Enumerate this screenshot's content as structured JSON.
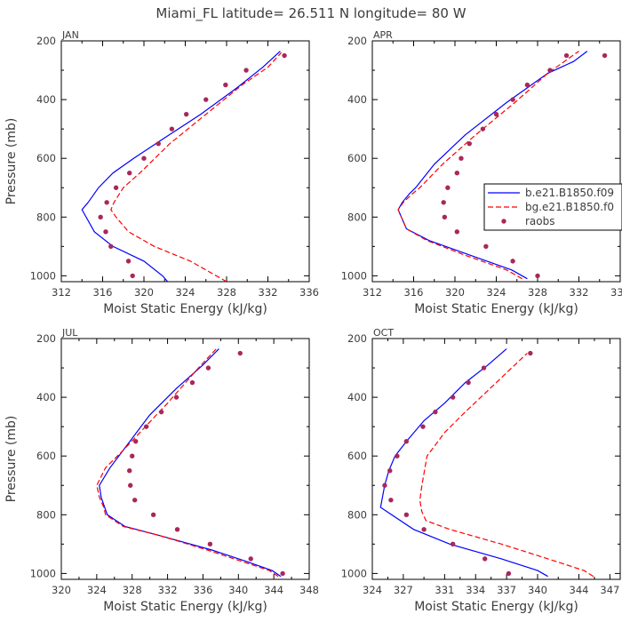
{
  "figure": {
    "title": "Miami_FL   latitude= 26.511 N longitude= 80 W"
  },
  "legend": {
    "entries": [
      {
        "label": "b.e21.B1850.f09",
        "color": "#0000ff",
        "style": "solid"
      },
      {
        "label": "bg.e21.B1850.f0",
        "color": "#ff0000",
        "style": "dashed"
      },
      {
        "label": "raobs",
        "color": "#a8285a",
        "style": "dot"
      }
    ]
  },
  "chart_data": [
    {
      "type": "line",
      "panel": "JAN",
      "title": "JAN",
      "xlabel": "Moist Static Energy (kJ/kg)",
      "ylabel": "Pressure (mb)",
      "xlim": [
        312,
        336
      ],
      "ylim": [
        1020,
        200
      ],
      "xticks": [
        312,
        316,
        320,
        324,
        328,
        332,
        336
      ],
      "yticks": [
        200,
        400,
        600,
        800,
        1000
      ],
      "series": [
        {
          "name": "b.e21.B1850.f09",
          "color": "#0000ff",
          "style": "solid",
          "x": [
            322.3,
            321.8,
            320.0,
            317.0,
            315.2,
            314.0,
            314.6,
            315.6,
            317.0,
            319.0,
            322.0,
            325.5,
            329.0,
            331.5,
            333.2
          ],
          "y": [
            1020,
            1000,
            950,
            900,
            850,
            775,
            750,
            700,
            650,
            600,
            530,
            450,
            360,
            290,
            235
          ]
        },
        {
          "name": "bg.e21.B1850.f0",
          "color": "#ff0000",
          "style": "dashed",
          "x": [
            328.0,
            327.0,
            324.5,
            321.0,
            318.5,
            317.3,
            316.8,
            317.1,
            318.0,
            319.6,
            322.5,
            326.0,
            329.5,
            332.0,
            333.3
          ],
          "y": [
            1020,
            1000,
            950,
            900,
            850,
            800,
            775,
            750,
            700,
            650,
            550,
            450,
            350,
            290,
            240
          ]
        },
        {
          "name": "raobs",
          "color": "#a8285a",
          "style": "dot",
          "x": [
            318.9,
            318.5,
            316.8,
            316.3,
            315.8,
            316.4,
            317.3,
            318.6,
            320.0,
            321.4,
            322.7,
            324.1,
            326.0,
            327.9,
            329.9,
            333.6
          ],
          "y": [
            1000,
            950,
            900,
            850,
            800,
            750,
            700,
            650,
            600,
            550,
            500,
            450,
            400,
            350,
            300,
            250
          ]
        }
      ]
    },
    {
      "type": "line",
      "panel": "APR",
      "title": "APR",
      "xlabel": "Moist Static Energy (kJ/kg)",
      "ylabel": "",
      "xlim": [
        312,
        336
      ],
      "ylim": [
        1020,
        200
      ],
      "xticks": [
        312,
        316,
        320,
        324,
        328,
        332,
        336
      ],
      "yticks": [
        200,
        400,
        600,
        800,
        1000
      ],
      "series": [
        {
          "name": "b.e21.B1850.f09",
          "color": "#0000ff",
          "style": "solid",
          "x": [
            327.0,
            325.5,
            321.5,
            317.5,
            315.3,
            314.5,
            314.9,
            315.6,
            316.2,
            318.0,
            321.0,
            325.0,
            329.0,
            331.5,
            332.8
          ],
          "y": [
            1010,
            980,
            930,
            880,
            840,
            775,
            750,
            720,
            700,
            620,
            520,
            410,
            310,
            270,
            235
          ]
        },
        {
          "name": "bg.e21.B1850.f0",
          "color": "#ff0000",
          "style": "dashed",
          "x": [
            326.5,
            325.0,
            321.0,
            317.3,
            315.3,
            314.5,
            315.0,
            315.9,
            316.6,
            318.8,
            322.0,
            325.8,
            329.0,
            331.0,
            332.0
          ],
          "y": [
            1010,
            980,
            930,
            880,
            840,
            775,
            750,
            720,
            700,
            620,
            520,
            410,
            310,
            260,
            235
          ]
        },
        {
          "name": "raobs",
          "color": "#a8285a",
          "style": "dot",
          "x": [
            328.0,
            325.6,
            323.0,
            320.2,
            319.0,
            318.9,
            319.3,
            320.2,
            320.6,
            321.4,
            322.7,
            324.0,
            325.6,
            327.0,
            329.2,
            330.8,
            334.5
          ],
          "y": [
            1000,
            950,
            900,
            850,
            800,
            750,
            700,
            650,
            600,
            550,
            500,
            450,
            400,
            350,
            300,
            250,
            250
          ]
        }
      ]
    },
    {
      "type": "line",
      "panel": "JUL",
      "title": "JUL",
      "xlabel": "Moist Static Energy (kJ/kg)",
      "ylabel": "Pressure (mb)",
      "xlim": [
        320,
        348
      ],
      "ylim": [
        1020,
        200
      ],
      "xticks": [
        320,
        324,
        328,
        332,
        336,
        340,
        344,
        348
      ],
      "yticks": [
        200,
        400,
        600,
        800,
        1000
      ],
      "series": [
        {
          "name": "b.e21.B1850.f09",
          "color": "#0000ff",
          "style": "solid",
          "x": [
            344.8,
            343.8,
            341.0,
            337.0,
            331.0,
            327.2,
            325.2,
            324.9,
            324.5,
            324.3,
            325.5,
            327.5,
            330.0,
            333.0,
            336.0,
            337.8
          ],
          "y": [
            1010,
            990,
            960,
            920,
            870,
            840,
            800,
            775,
            740,
            700,
            640,
            560,
            460,
            370,
            290,
            235
          ]
        },
        {
          "name": "bg.e21.B1850.f0",
          "color": "#ff0000",
          "style": "dashed",
          "x": [
            344.5,
            343.5,
            340.5,
            336.5,
            331.0,
            327.0,
            325.0,
            324.8,
            324.3,
            324.0,
            325.0,
            327.0,
            329.5,
            332.0,
            335.5,
            337.5
          ],
          "y": [
            1010,
            990,
            960,
            920,
            870,
            840,
            800,
            775,
            740,
            700,
            640,
            580,
            500,
            420,
            300,
            235
          ]
        },
        {
          "name": "raobs",
          "color": "#a8285a",
          "style": "dot",
          "x": [
            345.0,
            341.4,
            336.8,
            333.1,
            330.4,
            328.3,
            327.8,
            327.7,
            328.0,
            328.4,
            329.6,
            331.3,
            333.0,
            334.8,
            336.6,
            340.2
          ],
          "y": [
            1000,
            950,
            900,
            850,
            800,
            750,
            700,
            650,
            600,
            550,
            500,
            450,
            400,
            350,
            300,
            250
          ]
        }
      ]
    },
    {
      "type": "line",
      "panel": "OCT",
      "title": "OCT",
      "xlabel": "Moist Static Energy (kJ/kg)",
      "ylabel": "",
      "xlim": [
        324,
        348
      ],
      "ylim": [
        1020,
        200
      ],
      "xticks": [
        324,
        327,
        331,
        334,
        337,
        340,
        344,
        347
      ],
      "yticks": [
        200,
        400,
        600,
        800,
        1000
      ],
      "series": [
        {
          "name": "b.e21.B1850.f09",
          "color": "#0000ff",
          "style": "solid",
          "x": [
            341.0,
            340.0,
            336.5,
            331.5,
            328.0,
            324.8,
            325.2,
            325.6,
            326.2,
            327.3,
            329.0,
            331.0,
            333.0,
            335.2,
            337.0
          ],
          "y": [
            1010,
            990,
            950,
            900,
            850,
            775,
            700,
            650,
            600,
            550,
            480,
            420,
            350,
            290,
            235
          ]
        },
        {
          "name": "bg.e21.B1850.f0",
          "color": "#ff0000",
          "style": "dashed",
          "x": [
            345.4,
            344.5,
            341.0,
            336.5,
            331.5,
            329.2,
            328.8,
            328.6,
            328.8,
            329.3,
            331.0,
            333.0,
            334.5,
            336.0,
            337.5,
            339.0
          ],
          "y": [
            1010,
            990,
            950,
            900,
            850,
            820,
            790,
            750,
            700,
            600,
            520,
            450,
            400,
            350,
            300,
            250
          ]
        },
        {
          "name": "raobs",
          "color": "#a8285a",
          "style": "dot",
          "x": [
            337.2,
            334.9,
            331.8,
            329.0,
            327.3,
            325.8,
            325.2,
            325.7,
            326.4,
            327.3,
            328.9,
            330.1,
            331.8,
            333.3,
            334.8,
            339.3
          ],
          "y": [
            1000,
            950,
            900,
            850,
            800,
            750,
            700,
            650,
            600,
            550,
            500,
            450,
            400,
            350,
            300,
            250
          ]
        }
      ]
    }
  ]
}
